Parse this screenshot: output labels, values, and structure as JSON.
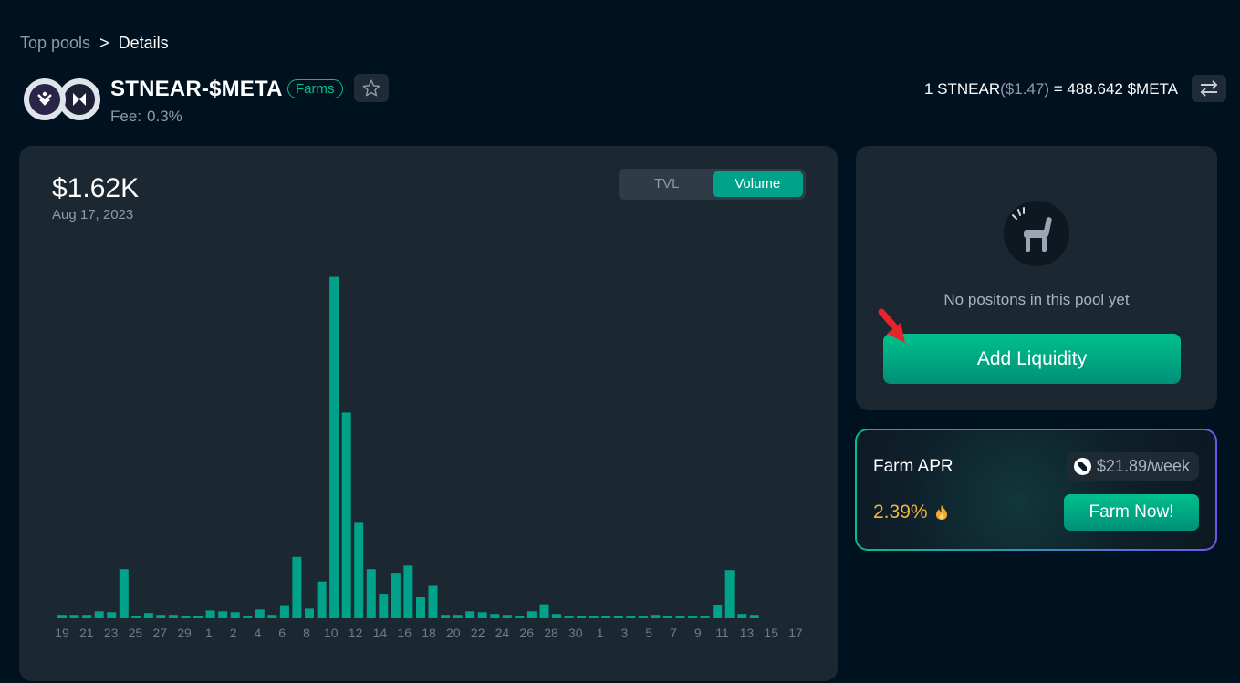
{
  "breadcrumb": {
    "parent": "Top pools",
    "separator": ">",
    "current": "Details"
  },
  "pool": {
    "name": "STNEAR-$META",
    "badge": "Farms",
    "fee_label": "Fee:",
    "fee_value": "0.3%",
    "token_icons": [
      "stnear-token-icon",
      "meta-token-icon"
    ]
  },
  "rate": {
    "left": "1 STNEAR",
    "left_usd": "($1.47)",
    "equals": "=",
    "right": "488.642 $META"
  },
  "chart": {
    "value": "$1.62K",
    "date": "Aug 17, 2023",
    "tabs": [
      "TVL",
      "Volume"
    ],
    "active_tab": "Volume"
  },
  "chart_data": {
    "type": "bar",
    "title": "",
    "xlabel": "",
    "ylabel": "",
    "bar_color": "#00a38a",
    "categories": [
      "19",
      "20",
      "21",
      "22",
      "23",
      "24",
      "25",
      "26",
      "27",
      "28",
      "29",
      "30",
      "31",
      "1",
      "2",
      "3",
      "4",
      "5",
      "6",
      "7",
      "8",
      "9",
      "10",
      "11",
      "12",
      "13",
      "14",
      "15",
      "16",
      "17",
      "18",
      "19",
      "20",
      "21",
      "22",
      "23",
      "24",
      "25",
      "26",
      "27",
      "28",
      "29",
      "30",
      "1",
      "2",
      "3",
      "4",
      "5",
      "6",
      "7",
      "8",
      "9",
      "10",
      "11",
      "12",
      "13",
      "14",
      "15",
      "16",
      "17"
    ],
    "tick_labels": [
      "19",
      "21",
      "23",
      "25",
      "27",
      "29",
      "1",
      "2",
      "4",
      "6",
      "8",
      "10",
      "12",
      "14",
      "16",
      "18",
      "20",
      "22",
      "24",
      "26",
      "28",
      "30",
      "1",
      "3",
      "5",
      "7",
      "9",
      "11",
      "13",
      "15",
      "17"
    ],
    "values": [
      4,
      4,
      4,
      8,
      7,
      56,
      3,
      6,
      4,
      4,
      3,
      3,
      9,
      8,
      7,
      3,
      10,
      4,
      14,
      70,
      11,
      42,
      390,
      235,
      110,
      56,
      28,
      52,
      60,
      24,
      37,
      4,
      4,
      8,
      7,
      5,
      4,
      3,
      8,
      16,
      5,
      3,
      3,
      3,
      3,
      3,
      3,
      3,
      4,
      3,
      2,
      2,
      2,
      15,
      55,
      5,
      4,
      0,
      0,
      0
    ],
    "ylim": [
      0,
      400
    ],
    "grid": false
  },
  "positions": {
    "empty_text": "No positons in this pool yet",
    "add_button": "Add Liquidity"
  },
  "farm": {
    "title": "Farm APR",
    "reward": "$21.89/week",
    "apr": "2.39%",
    "button": "Farm Now!"
  }
}
